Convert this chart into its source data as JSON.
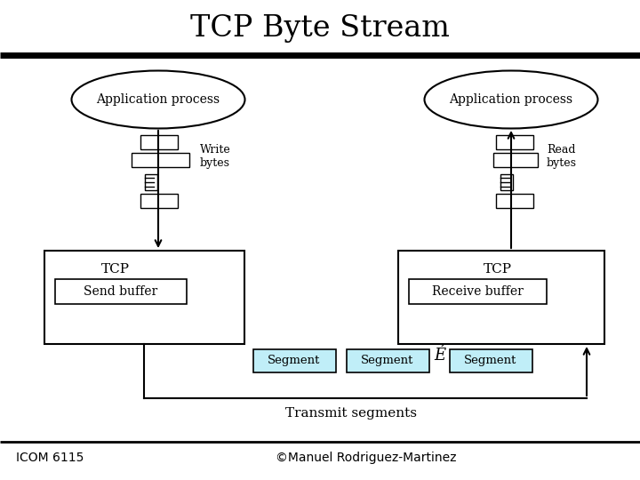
{
  "title": "TCP Byte Stream",
  "title_fontsize": 24,
  "footer_left": "ICOM 6115",
  "footer_right": "©Manuel Rodriguez-Martinez",
  "footer_fontsize": 10,
  "bg_color": "#ffffff",
  "segment_fill": "#c0eef8",
  "segment_edge": "#000000",
  "box_fill": "#ffffff",
  "box_edge": "#000000"
}
